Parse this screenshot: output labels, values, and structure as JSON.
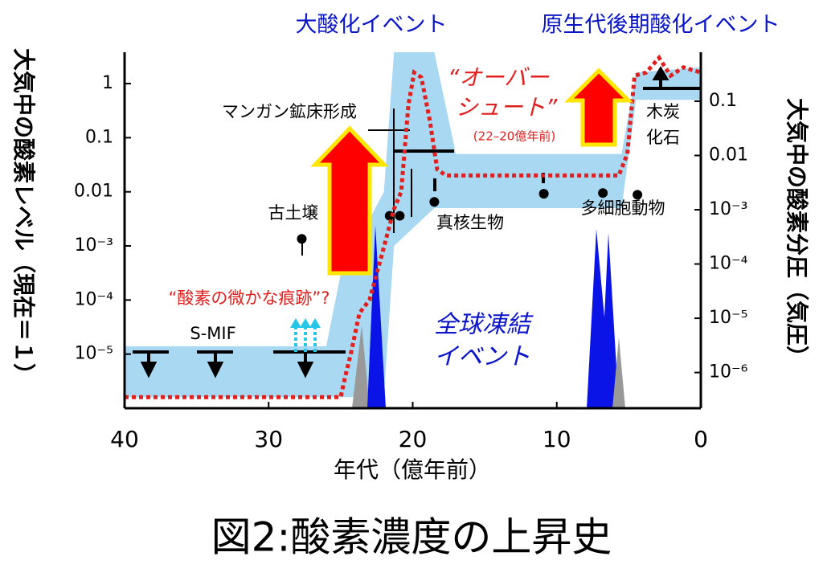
{
  "chart_data": {
    "type": "line",
    "title": "図2:酸素濃度の上昇史",
    "top_labels": [
      "大酸化イベント",
      "原生代後期酸化イベント"
    ],
    "x_label": "年代（億年前）",
    "y_label": "大気中の酸素レベル（現在＝１）",
    "y2_label": "大気中の酸素分圧（気圧）",
    "xlim": [
      40,
      0
    ],
    "xticks": [
      40,
      30,
      20,
      10,
      0
    ],
    "log_y": true,
    "ylim": [
      1e-06,
      3.8
    ],
    "yticks": [
      1,
      0.1,
      0.01,
      {
        "value": 0.001,
        "label": "10⁻³"
      },
      {
        "value": 0.0001,
        "label": "10⁻⁴"
      },
      {
        "value": 1e-05,
        "label": "10⁻⁵"
      }
    ],
    "y2lim": [
      2.2e-07,
      0.8
    ],
    "y2ticks": [
      0.1,
      0.01,
      {
        "value": 0.001,
        "label": "10⁻³"
      },
      {
        "value": 0.0001,
        "label": "10⁻⁴"
      },
      {
        "value": 1e-05,
        "label": "10⁻⁵"
      },
      {
        "value": 1e-06,
        "label": "10⁻⁶"
      }
    ],
    "series": [
      {
        "color": "#e0201e",
        "x": [
          40,
          25.0,
          24.7,
          24.3,
          23.7,
          23.0,
          22.2,
          21.3,
          20.8,
          20.3,
          19.9,
          19.4,
          18.8,
          18.3,
          17.7,
          5.7,
          5.1,
          4.6,
          3.8,
          2.9,
          2.1,
          1.2,
          0
        ],
        "values": [
          1.6e-06,
          1.6e-06,
          3.7e-06,
          1e-05,
          5.7e-05,
          0.0001,
          0.0006,
          0.0048,
          0.01,
          0.4,
          1.6,
          1.3,
          0.2,
          0.026,
          0.02,
          0.02,
          0.05,
          1.4,
          1.6,
          3,
          1.4,
          2,
          1.6
        ]
      }
    ],
    "band": {
      "color": "#a9d8f2",
      "x": [
        40,
        26,
        25,
        22,
        21.3,
        18.5,
        17,
        5.5,
        4.5,
        0
      ],
      "upper": [
        1.4e-05,
        1.4e-05,
        0.0003,
        0.01,
        3.8,
        3.8,
        0.05,
        0.05,
        1.6,
        2
      ],
      "lower": [
        1.6e-06,
        1.6e-06,
        1.6e-06,
        1.6e-06,
        0.001,
        0.005,
        0.005,
        0.005,
        0.5,
        0.5
      ]
    },
    "points": {
      "color": "#000000",
      "x": [
        27.7,
        21.6,
        20.9,
        18.5,
        10.9,
        6.8,
        4.4
      ],
      "values": [
        0.00135,
        0.0036,
        0.0036,
        0.0065,
        0.0092,
        0.0095,
        0.0088
      ]
    },
    "annotations": {
      "manganese": "マンガン鉱床形成",
      "paleosol": "古土壌",
      "trace": "“酸素の微かな痕跡”?",
      "smif": "S-MIF",
      "overshoot": [
        "“オーバー",
        "シュート”"
      ],
      "overshoot_period": "(22–20億年前)",
      "eukaryotes": "真核生物",
      "metazoa": "多細胞動物",
      "charcoal": [
        "木炭",
        "化石"
      ],
      "snowball": [
        "全球凍結",
        "イベント"
      ]
    }
  }
}
